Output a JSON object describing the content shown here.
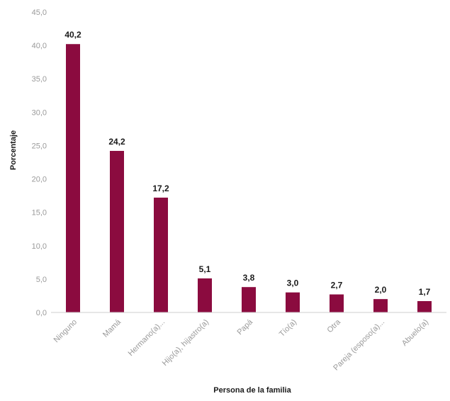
{
  "chart_data": {
    "type": "bar",
    "categories": [
      "Ninguno",
      "Mamá",
      "Hermano(a)...",
      "Hijo(a), hijastro(a)",
      "Papá",
      "Tío(a)",
      "Otra",
      "Pareja (esposo(a)...",
      "Abuelo(a)"
    ],
    "values": [
      40.2,
      24.2,
      17.2,
      5.1,
      3.8,
      3.0,
      2.7,
      2.0,
      1.7
    ],
    "value_labels": [
      "40,2",
      "24,2",
      "17,2",
      "5,1",
      "3,8",
      "3,0",
      "2,7",
      "2,0",
      "1,7"
    ],
    "ylim": [
      0,
      45
    ],
    "yticks": [
      "0,0",
      "5,0",
      "10,0",
      "15,0",
      "20,0",
      "25,0",
      "30,0",
      "35,0",
      "40,0",
      "45,0"
    ],
    "xlabel": "Persona de la familia",
    "ylabel": "Porcentaje",
    "grid": false,
    "bar_color": "#8b0b3f"
  }
}
